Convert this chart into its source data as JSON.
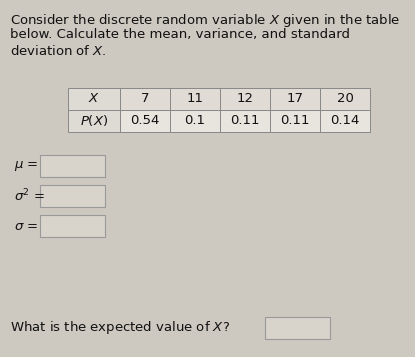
{
  "title_line1": "Consider the discrete random variable $X$ given in the table",
  "title_line2": "below. Calculate the mean, variance, and standard",
  "title_line3": "deviation of $X$.",
  "x_values": [
    "7",
    "11",
    "12",
    "17",
    "20"
  ],
  "p_values": [
    "0.54",
    "0.1",
    "0.11",
    "0.11",
    "0.14"
  ],
  "row_headers": [
    "$X$",
    "$P(X)$"
  ],
  "mu_label": "$\\mu$ =",
  "sigma2_label": "$\\sigma^2$ =",
  "sigma_label": "$\\sigma$ =",
  "bottom_question": "What is the expected value of $X$?",
  "bg_color": "#cdc8c0",
  "table_bg_header_row": "#e0dbd4",
  "table_bg_data_row": "#e8e4de",
  "table_header_col_bg": "#dedad4",
  "box_fill": "#d8d4cc",
  "text_color": "#111111",
  "font_size": 9.5,
  "table_edge_color": "#888888",
  "box_edge_color": "#999999"
}
